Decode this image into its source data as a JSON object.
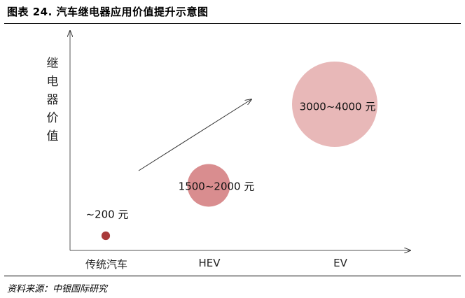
{
  "header": {
    "title": "图表 24. 汽车继电器应用价值提升示意图"
  },
  "footer": {
    "source": "资料来源：中银国际研究"
  },
  "chart_data": {
    "type": "scatter",
    "title": "图表 24. 汽车继电器应用价值提升示意图",
    "ylabel": "继电器价值",
    "xlabel": "",
    "categories": [
      "传统汽车",
      "HEV",
      "EV"
    ],
    "points": [
      {
        "category": "传统汽车",
        "label": "~200 元",
        "relative_size": 0.1,
        "color": "#a93a3a"
      },
      {
        "category": "HEV",
        "label": "1500~2000 元",
        "relative_size": 0.5,
        "color": "#d98d8f"
      },
      {
        "category": "EV",
        "label": "3000~4000 元",
        "relative_size": 1.0,
        "color": "#e8b8b8"
      }
    ],
    "trend_arrow": true,
    "grid": false,
    "legend": "none"
  }
}
